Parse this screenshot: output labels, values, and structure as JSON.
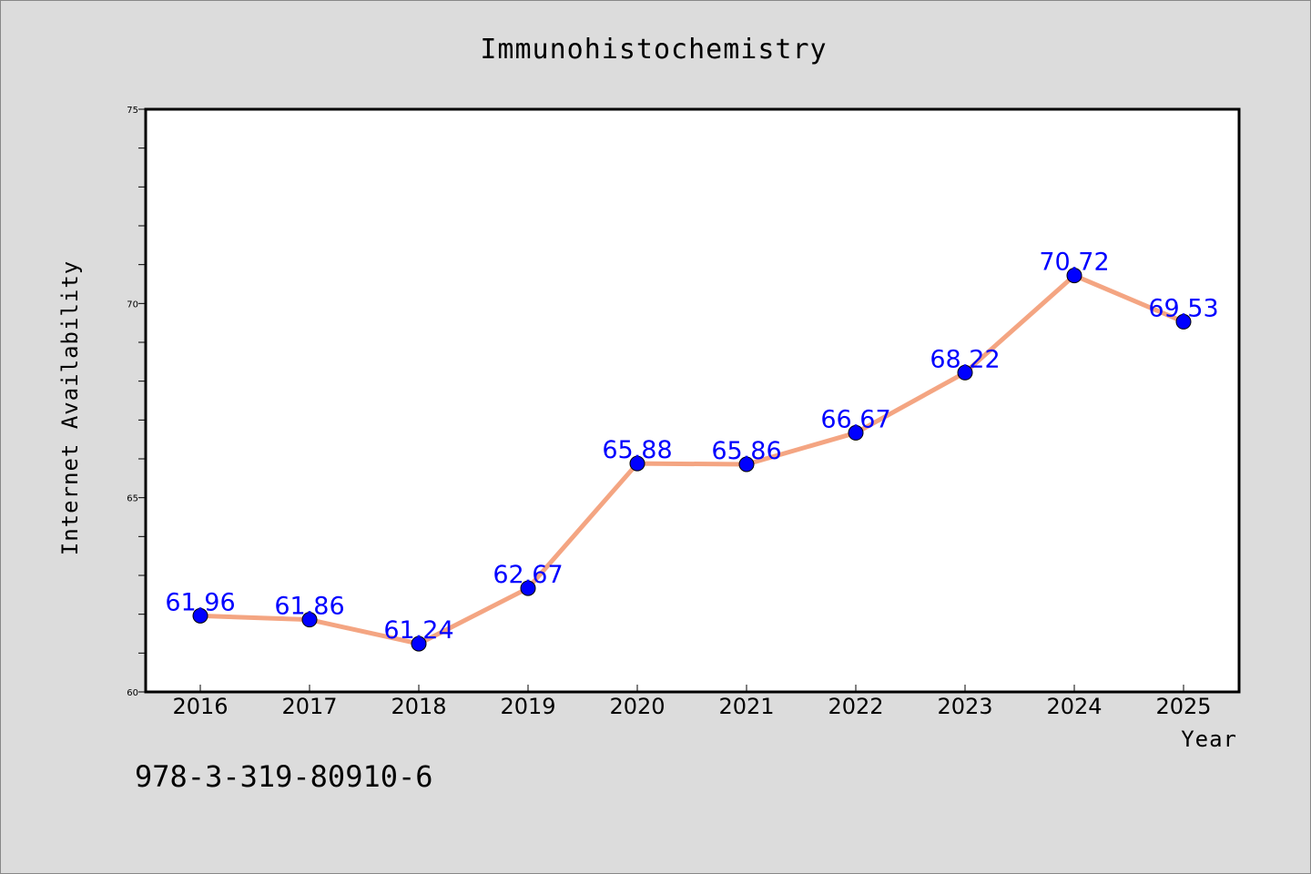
{
  "chart_data": {
    "type": "line",
    "title": "Immunohistochemistry",
    "xlabel": "Year",
    "ylabel": "Internet Availability",
    "categories": [
      "2016",
      "2017",
      "2018",
      "2019",
      "2020",
      "2021",
      "2022",
      "2023",
      "2024",
      "2025"
    ],
    "series": [
      {
        "values": [
          61.96,
          61.86,
          61.24,
          62.67,
          65.88,
          65.86,
          66.67,
          68.22,
          70.72,
          69.53
        ],
        "labels": [
          "61.96",
          "61.86",
          "61.24",
          "62.67",
          "65.88",
          "65.86",
          "66.67",
          "68.22",
          "70.72",
          "69.53"
        ],
        "line_color": "#f4a582",
        "marker_color": "#0000ff"
      }
    ],
    "ylim": [
      60,
      75
    ],
    "yticks": [
      "60",
      "65",
      "70",
      "75"
    ],
    "grid": false,
    "legend": "none"
  },
  "footer_text": "978-3-319-80910-6",
  "colors": {
    "background": "#dcdcdc",
    "plot_background": "#ffffff",
    "label_color": "#0000ff"
  }
}
